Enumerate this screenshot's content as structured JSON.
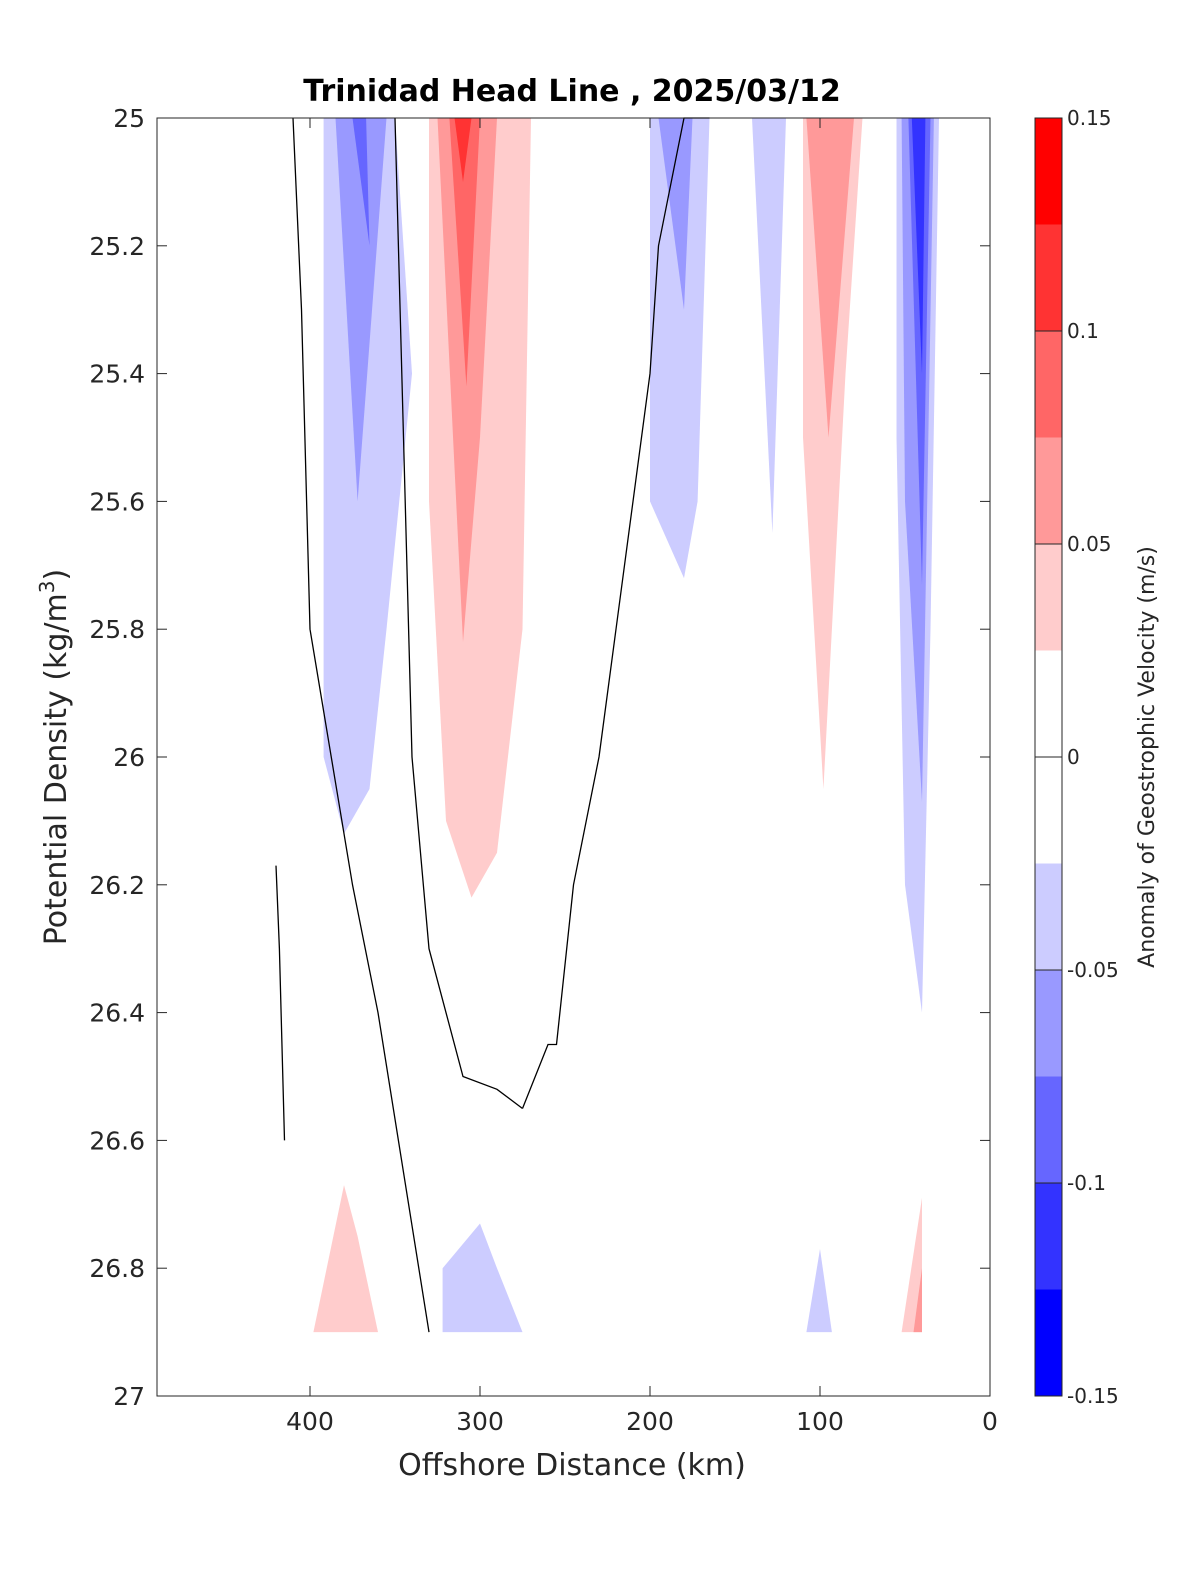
{
  "chart_data": {
    "type": "contour",
    "title": "Trinidad Head Line , 2025/03/12",
    "xlabel": "Offshore Distance (km)",
    "ylabel_main": "Potential Density (kg/m",
    "ylabel_sup": "3",
    "ylabel_close": ")",
    "xlim": [
      490,
      0
    ],
    "ylim": [
      25,
      27
    ],
    "y_reversed": true,
    "x_reversed": true,
    "xticks": [
      400,
      300,
      200,
      100,
      0
    ],
    "xtick_labels": [
      "400",
      "300",
      "200",
      "100",
      "0"
    ],
    "yticks": [
      25,
      25.2,
      25.4,
      25.6,
      25.8,
      26,
      26.2,
      26.4,
      26.6,
      26.8,
      27
    ],
    "ytick_labels": [
      "25",
      "25.2",
      "25.4",
      "25.6",
      "25.8",
      "26",
      "26.2",
      "26.4",
      "26.6",
      "26.8",
      "27"
    ],
    "colorbar": {
      "label": "Anomaly of Geostrophic Velocity (m/s)",
      "range": [
        -0.15,
        0.15
      ],
      "levels": [
        -0.15,
        -0.125,
        -0.1,
        -0.075,
        -0.05,
        -0.025,
        0.025,
        0.05,
        0.075,
        0.1,
        0.125,
        0.15
      ],
      "ticks": [
        0.15,
        0.1,
        0.05,
        0,
        -0.05,
        -0.1,
        -0.15
      ],
      "tick_labels": [
        "0.15",
        "0.1",
        "0.05",
        "0",
        "-0.05",
        "-0.1",
        "-0.15"
      ],
      "colors_top_to_bottom": [
        "#ff0000",
        "#ff3333",
        "#ff6666",
        "#ff9999",
        "#ffcccc",
        "#ffffff",
        "#ffffff",
        "#ccccff",
        "#9999ff",
        "#6666ff",
        "#3333ff",
        "#0000ff"
      ]
    },
    "filled_regions": [
      {
        "x": [
          392,
          350,
          340,
          355,
          365,
          380,
          392
        ],
        "y": [
          25,
          25,
          25.4,
          25.8,
          26.05,
          26.12,
          26.0
        ],
        "color": "#ccccff"
      },
      {
        "x": [
          355,
          385,
          372,
          355
        ],
        "y": [
          25,
          25,
          25.6,
          25.0
        ],
        "color": "#9999ff"
      },
      {
        "x": [
          367,
          365,
          375,
          367
        ],
        "y": [
          25,
          25.2,
          25.0,
          25.0
        ],
        "color": "#6666ff"
      },
      {
        "x": [
          330,
          270,
          275,
          290,
          305,
          320,
          330
        ],
        "y": [
          25,
          25,
          25.8,
          26.15,
          26.22,
          26.1,
          25.6
        ],
        "color": "#ffcccc"
      },
      {
        "x": [
          325,
          290,
          300,
          310,
          325
        ],
        "y": [
          25,
          25,
          25.5,
          25.82,
          25.0
        ],
        "color": "#ff9999"
      },
      {
        "x": [
          318,
          300,
          308,
          318
        ],
        "y": [
          25,
          25,
          25.42,
          25.0
        ],
        "color": "#ff6666"
      },
      {
        "x": [
          315,
          305,
          310,
          315
        ],
        "y": [
          25,
          25,
          25.1,
          25.0
        ],
        "color": "#ff3333"
      },
      {
        "x": [
          200,
          165,
          172,
          180,
          200
        ],
        "y": [
          25,
          25,
          25.6,
          25.72,
          25.6
        ],
        "color": "#ccccff"
      },
      {
        "x": [
          195,
          175,
          180,
          195
        ],
        "y": [
          25,
          25,
          25.3,
          25.0
        ],
        "color": "#9999ff"
      },
      {
        "x": [
          140,
          120,
          128,
          140
        ],
        "y": [
          25,
          25,
          25.65,
          25.0
        ],
        "color": "#ccccff"
      },
      {
        "x": [
          110,
          75,
          85,
          98,
          110
        ],
        "y": [
          25,
          25,
          25.4,
          26.05,
          25.5
        ],
        "color": "#ffcccc"
      },
      {
        "x": [
          108,
          80,
          95,
          108
        ],
        "y": [
          25,
          25,
          25.5,
          25.0
        ],
        "color": "#ff9999"
      },
      {
        "x": [
          55,
          30,
          35,
          40,
          50,
          55
        ],
        "y": [
          25,
          25,
          25.8,
          26.4,
          26.2,
          25.5
        ],
        "color": "#ccccff"
      },
      {
        "x": [
          52,
          33,
          40,
          50,
          52
        ],
        "y": [
          25,
          25,
          26.07,
          25.6,
          25.0
        ],
        "color": "#9999ff"
      },
      {
        "x": [
          48,
          35,
          40,
          48
        ],
        "y": [
          25,
          25,
          25.73,
          25.0
        ],
        "color": "#6666ff"
      },
      {
        "x": [
          46,
          38,
          40,
          46
        ],
        "y": [
          25,
          25,
          25.4,
          25.0
        ],
        "color": "#3333ff"
      },
      {
        "x": [
          398,
          360,
          372,
          380,
          398
        ],
        "y": [
          26.9,
          26.9,
          26.75,
          26.67,
          26.9
        ],
        "color": "#ffcccc"
      },
      {
        "x": [
          322,
          275,
          290,
          300,
          322
        ],
        "y": [
          26.9,
          26.9,
          26.8,
          26.73,
          26.8
        ],
        "color": "#ccccff"
      },
      {
        "x": [
          108,
          93,
          100,
          108
        ],
        "y": [
          26.9,
          26.9,
          26.77,
          26.9
        ],
        "color": "#ccccff"
      },
      {
        "x": [
          52,
          40,
          40,
          52
        ],
        "y": [
          26.9,
          26.9,
          26.69,
          26.9
        ],
        "color": "#ffcccc"
      },
      {
        "x": [
          45,
          40,
          40,
          45
        ],
        "y": [
          26.9,
          26.9,
          26.8,
          26.9
        ],
        "color": "#ff9999"
      }
    ],
    "contour_lines": [
      {
        "x": [
          410,
          405,
          400,
          375,
          360,
          330
        ],
        "y": [
          25.0,
          25.3,
          25.8,
          26.2,
          26.4,
          26.9
        ]
      },
      {
        "x": [
          350,
          345,
          340,
          330,
          310,
          290,
          275
        ],
        "y": [
          25.0,
          25.5,
          26.0,
          26.3,
          26.5,
          26.52,
          26.55
        ]
      },
      {
        "x": [
          275,
          260,
          255,
          245,
          230,
          220,
          210,
          200,
          195,
          180,
          175,
          170,
          165
        ],
        "y": [
          26.55,
          26.45,
          26.45,
          26.2,
          26.0,
          25.8,
          25.6,
          25.4,
          25.2,
          25.0,
          25.0,
          25.0,
          25.0
        ]
      },
      {
        "x": [
          420,
          418,
          415
        ],
        "y": [
          26.17,
          26.3,
          26.6
        ]
      }
    ]
  }
}
